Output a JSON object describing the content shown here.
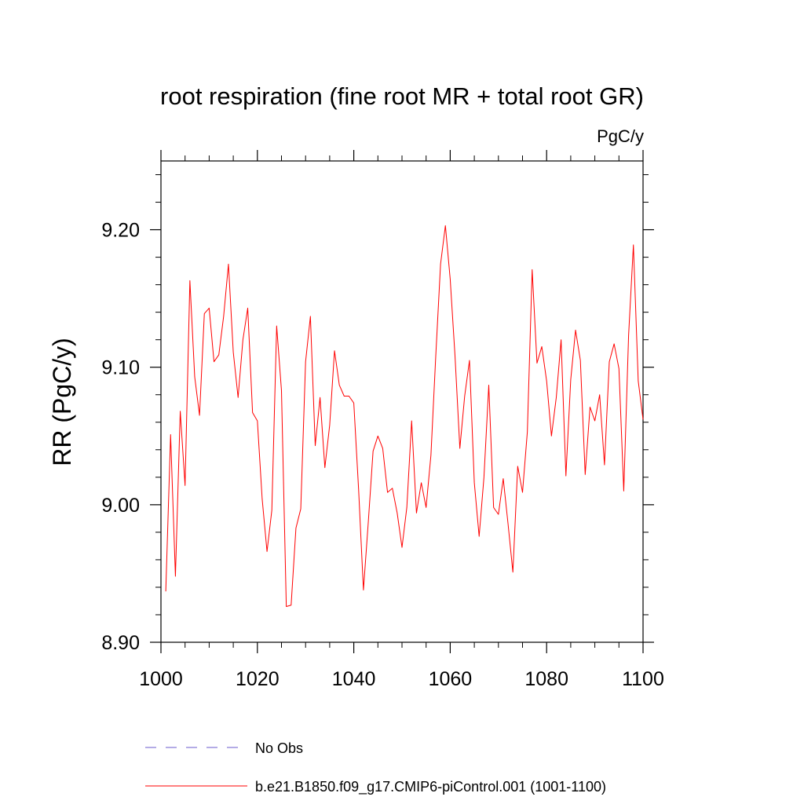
{
  "chart_data": {
    "type": "line",
    "title": "root respiration (fine root MR + total root GR)",
    "units_label": "PgC/y",
    "xlabel": "",
    "ylabel": "RR  (PgC/y)",
    "xlim": [
      1000,
      1100
    ],
    "ylim": [
      8.9,
      9.25
    ],
    "xticks": [
      1000,
      1020,
      1040,
      1060,
      1080,
      1100
    ],
    "xtick_labels": [
      "1000",
      "1020",
      "1040",
      "1060",
      "1080",
      "1100"
    ],
    "yticks": [
      8.9,
      9.0,
      9.1,
      9.2
    ],
    "ytick_labels": [
      "8.90",
      "9.00",
      "9.10",
      "9.20"
    ],
    "series": [
      {
        "name": "b.e21.B1850.f09_g17.CMIP6-piControl.001 (1001-1100)",
        "color": "#ff0000",
        "style": "solid",
        "x": [
          1001,
          1002,
          1003,
          1004,
          1005,
          1006,
          1007,
          1008,
          1009,
          1010,
          1011,
          1012,
          1013,
          1014,
          1015,
          1016,
          1017,
          1018,
          1019,
          1020,
          1021,
          1022,
          1023,
          1024,
          1025,
          1026,
          1027,
          1028,
          1029,
          1030,
          1031,
          1032,
          1033,
          1034,
          1035,
          1036,
          1037,
          1038,
          1039,
          1040,
          1041,
          1042,
          1043,
          1044,
          1045,
          1046,
          1047,
          1048,
          1049,
          1050,
          1051,
          1052,
          1053,
          1054,
          1055,
          1056,
          1057,
          1058,
          1059,
          1060,
          1061,
          1062,
          1063,
          1064,
          1065,
          1066,
          1067,
          1068,
          1069,
          1070,
          1071,
          1072,
          1073,
          1074,
          1075,
          1076,
          1077,
          1078,
          1079,
          1080,
          1081,
          1082,
          1083,
          1084,
          1085,
          1086,
          1087,
          1088,
          1089,
          1090,
          1091,
          1092,
          1093,
          1094,
          1095,
          1096,
          1097,
          1098,
          1099,
          1100
        ],
        "values": [
          8.937,
          9.051,
          8.948,
          9.068,
          9.014,
          9.163,
          9.093,
          9.065,
          9.139,
          9.143,
          9.104,
          9.109,
          9.137,
          9.175,
          9.111,
          9.078,
          9.12,
          9.143,
          9.067,
          9.061,
          9.004,
          8.966,
          8.996,
          9.13,
          9.083,
          8.926,
          8.927,
          8.983,
          8.997,
          9.104,
          9.137,
          9.043,
          9.078,
          9.027,
          9.058,
          9.112,
          9.087,
          9.079,
          9.079,
          9.074,
          9.011,
          8.938,
          8.987,
          9.039,
          9.05,
          9.041,
          9.009,
          9.012,
          8.994,
          8.969,
          8.998,
          9.061,
          8.994,
          9.016,
          8.998,
          9.036,
          9.108,
          9.175,
          9.203,
          9.164,
          9.108,
          9.041,
          9.079,
          9.105,
          9.016,
          8.977,
          9.02,
          9.087,
          8.998,
          8.993,
          9.019,
          8.986,
          8.951,
          9.028,
          9.009,
          9.053,
          9.171,
          9.103,
          9.115,
          9.09,
          9.05,
          9.078,
          9.12,
          9.021,
          9.091,
          9.127,
          9.105,
          9.022,
          9.071,
          9.061,
          9.08,
          9.029,
          9.104,
          9.117,
          9.099,
          9.01,
          9.123,
          9.189,
          9.09,
          9.062
        ]
      }
    ],
    "legend": [
      {
        "label": "No Obs",
        "color": "#6a5acd",
        "style": "dashed"
      },
      {
        "label": "b.e21.B1850.f09_g17.CMIP6-piControl.001 (1001-1100)",
        "color": "#ff0000",
        "style": "solid"
      }
    ]
  }
}
